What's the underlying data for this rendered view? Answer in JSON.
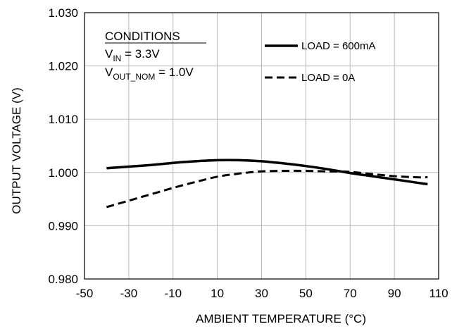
{
  "chart_data": {
    "type": "line",
    "xlabel": "AMBIENT TEMPERATURE (°C)",
    "ylabel": "OUTPUT VOLTAGE (V)",
    "xlim": [
      -50,
      110
    ],
    "ylim": [
      0.98,
      1.03
    ],
    "xticks": [
      "-50",
      "-30",
      "-10",
      "10",
      "30",
      "50",
      "70",
      "90",
      "110"
    ],
    "yticks": [
      "0.980",
      "0.990",
      "1.000",
      "1.010",
      "1.020",
      "1.030"
    ],
    "grid": "vertical and horizontal gridlines at every tick",
    "legend_position": "top-right",
    "annotation": {
      "heading": "CONDITIONS",
      "line1": {
        "main": "V",
        "sub": "IN",
        "rest": " = 3.3V"
      },
      "line2": {
        "main": "V",
        "sub": "OUT_NOM",
        "rest": " = 1.0V"
      }
    },
    "series": [
      {
        "name": "LOAD = 600mA",
        "style": "solid",
        "color": "#000000",
        "points": [
          [
            -40,
            1.0008
          ],
          [
            -30,
            1.0011
          ],
          [
            -20,
            1.0014
          ],
          [
            -10,
            1.0018
          ],
          [
            0,
            1.0021
          ],
          [
            10,
            1.0023
          ],
          [
            20,
            1.0023
          ],
          [
            30,
            1.0021
          ],
          [
            40,
            1.0017
          ],
          [
            50,
            1.0012
          ],
          [
            60,
            1.0006
          ],
          [
            70,
            0.9999
          ],
          [
            80,
            0.9993
          ],
          [
            90,
            0.9987
          ],
          [
            100,
            0.9981
          ],
          [
            105,
            0.9978
          ]
        ]
      },
      {
        "name": "LOAD = 0A",
        "style": "dashed",
        "color": "#000000",
        "points": [
          [
            -40,
            0.9935
          ],
          [
            -30,
            0.9947
          ],
          [
            -20,
            0.9959
          ],
          [
            -10,
            0.9971
          ],
          [
            0,
            0.9982
          ],
          [
            10,
            0.9992
          ],
          [
            20,
            0.9998
          ],
          [
            30,
            1.0002
          ],
          [
            40,
            1.0003
          ],
          [
            50,
            1.0003
          ],
          [
            60,
            1.0002
          ],
          [
            70,
            1.0001
          ],
          [
            80,
            0.9997
          ],
          [
            90,
            0.9993
          ],
          [
            100,
            0.9991
          ],
          [
            105,
            0.9991
          ]
        ]
      }
    ]
  }
}
